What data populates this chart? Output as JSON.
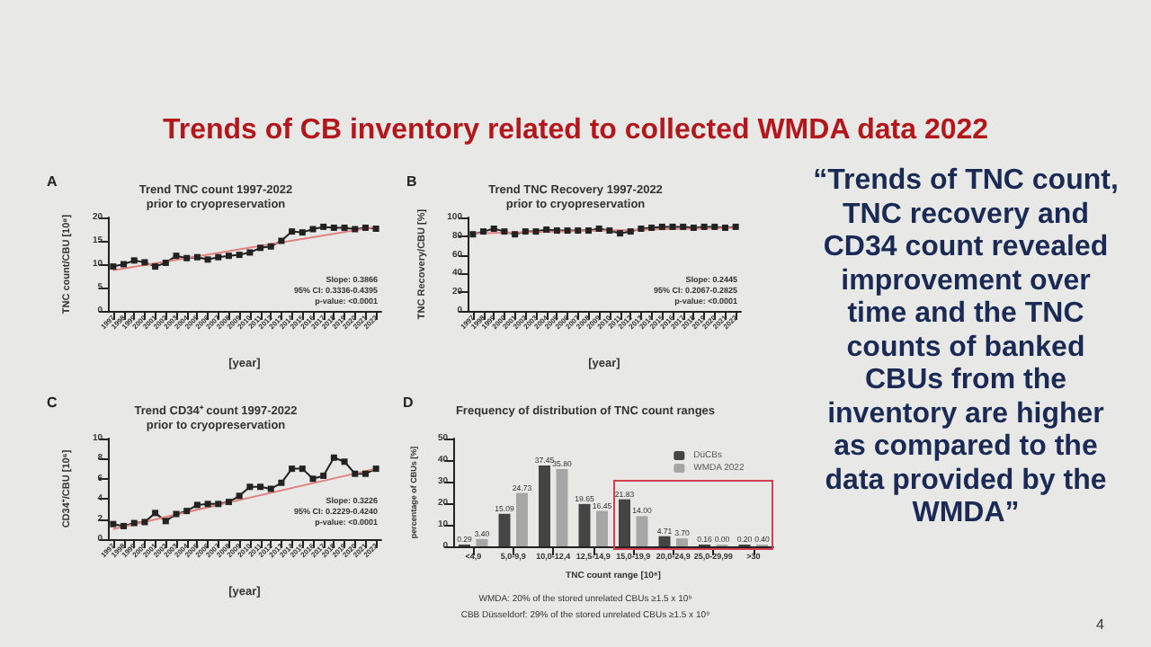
{
  "chart_data": [
    {
      "type": "other",
      "title": "Trends of CB inventory related to collected WMDA data 2022"
    },
    {
      "type": "line",
      "title": "Trend TNC count 1997-2022\nprior to cryopreservation",
      "subtitle": "A",
      "xlabel": "[year]",
      "ylabel": "TNC count/CBU [10⁸]",
      "categories": [
        "1997",
        "1998",
        "1999",
        "2000",
        "2001",
        "2002",
        "2003",
        "2004",
        "2005",
        "2006",
        "2007",
        "2008",
        "2009",
        "2010",
        "2011",
        "2012",
        "2013",
        "2014",
        "2015",
        "2016",
        "2017",
        "2018",
        "2019",
        "2020",
        "2021",
        "2022"
      ],
      "marker": "square",
      "ylim": [
        0,
        20
      ],
      "yticks": [
        0,
        5,
        10,
        15,
        20
      ],
      "series": [
        {
          "color": "#222222",
          "values": [
            9.5,
            10.0,
            10.8,
            10.4,
            9.5,
            10.3,
            11.8,
            11.3,
            11.5,
            11.0,
            11.5,
            11.8,
            12.0,
            12.5,
            13.5,
            13.8,
            15.0,
            17.0,
            16.8,
            17.5,
            18.0,
            17.8,
            17.8,
            17.5,
            17.8,
            17.6
          ]
        },
        {
          "color": "#e08080",
          "values": [
            8.7,
            null,
            null,
            null,
            null,
            null,
            null,
            null,
            null,
            null,
            null,
            null,
            null,
            null,
            null,
            null,
            null,
            null,
            null,
            null,
            null,
            null,
            null,
            null,
            null,
            18.0
          ],
          "marker": "none"
        }
      ],
      "annotations": [
        "Slope: 0.3866",
        "95% CI: 0.3336-0.4395",
        "p-value: <0.0001"
      ]
    },
    {
      "type": "line",
      "title": "Trend TNC Recovery 1997-2022\nprior to cryopreservation",
      "subtitle": "B",
      "xlabel": "[year]",
      "ylabel": "TNC Recovery/CBU [%]",
      "categories": [
        "1997",
        "1998",
        "1999",
        "2000",
        "2001",
        "2002",
        "2003",
        "2004",
        "2005",
        "2006",
        "2007",
        "2008",
        "2009",
        "2010",
        "2011",
        "2012",
        "2013",
        "2014",
        "2015",
        "2016",
        "2017",
        "2018",
        "2019",
        "2020",
        "2021",
        "2022"
      ],
      "marker": "square",
      "ylim": [
        0,
        100
      ],
      "yticks": [
        0,
        20,
        40,
        60,
        80,
        100
      ],
      "series": [
        {
          "color": "#222222",
          "values": [
            82,
            85,
            88,
            85,
            82,
            85,
            85,
            87,
            86,
            86,
            86,
            86,
            88,
            86,
            83,
            85,
            88,
            89,
            90,
            90,
            90,
            89,
            90,
            90,
            89,
            90
          ]
        },
        {
          "color": "#e08080",
          "values": [
            83,
            null,
            null,
            null,
            null,
            null,
            null,
            null,
            null,
            null,
            null,
            null,
            null,
            null,
            null,
            null,
            null,
            null,
            null,
            null,
            null,
            null,
            null,
            null,
            null,
            89
          ],
          "marker": "none"
        }
      ],
      "annotations": [
        "Slope: 0.2445",
        "95% CI: 0.2067-0.2825",
        "p-value: <0.0001"
      ]
    },
    {
      "type": "line",
      "title": "Trend CD34⁺ count 1997-2022\nprior to cryopreservation",
      "subtitle": "C",
      "xlabel": "[year]",
      "ylabel": "CD34⁺/CBU [10⁶]",
      "categories": [
        "1997",
        "1998",
        "1999",
        "2000",
        "2001",
        "2002",
        "2003",
        "2004",
        "2005",
        "2006",
        "2007",
        "2008",
        "2009",
        "2010",
        "2011",
        "2012",
        "2013",
        "2014",
        "2015",
        "2016",
        "2017",
        "2018",
        "2019",
        "2020",
        "2021",
        "2022"
      ],
      "marker": "square",
      "ylim": [
        0,
        10
      ],
      "yticks": [
        0,
        2,
        4,
        6,
        8,
        10
      ],
      "series": [
        {
          "color": "#222222",
          "values": [
            1.5,
            1.3,
            1.6,
            1.7,
            2.6,
            1.8,
            2.5,
            2.8,
            3.4,
            3.5,
            3.5,
            3.7,
            4.3,
            5.2,
            5.2,
            5.0,
            5.6,
            7.0,
            7.0,
            6.0,
            6.3,
            8.1,
            7.7,
            6.5,
            6.5,
            7.0
          ]
        },
        {
          "color": "#e08080",
          "values": [
            1.0,
            null,
            null,
            null,
            null,
            null,
            null,
            null,
            null,
            null,
            null,
            null,
            null,
            null,
            null,
            null,
            null,
            null,
            null,
            null,
            null,
            null,
            null,
            null,
            null,
            7.0
          ],
          "marker": "none"
        }
      ],
      "annotations": [
        "Slope: 0.3226",
        "95% CI: 0.2229-0.4240",
        "p-value: <0.0001"
      ]
    },
    {
      "type": "bar",
      "title": "Frequency of distribution of TNC count ranges",
      "subtitle": "D",
      "xlabel": "TNC count range [10⁸]",
      "ylabel": "percentage of CBUs [%]",
      "categories": [
        "<4,9",
        "5,0-9,9",
        "10,0-12,4",
        "12,5-14,9",
        "15,0-19,9",
        "20,0-24,9",
        "25,0-29,99",
        ">30"
      ],
      "ylim": [
        0,
        50
      ],
      "yticks": [
        0,
        10,
        20,
        30,
        40,
        50
      ],
      "legend": "top right",
      "series": [
        {
          "name": "DüCBs",
          "color": "#444444",
          "values": [
            0.29,
            15.09,
            37.45,
            19.65,
            21.83,
            4.71,
            0.16,
            0.2
          ],
          "value_labels": [
            "0.29",
            "15.09",
            "37.45",
            "19.65",
            "21.83",
            "4.71",
            "0.16",
            "0.20"
          ]
        },
        {
          "name": "WMDA 2022",
          "color": "#a6a6a6",
          "values": [
            3.4,
            24.73,
            35.8,
            16.45,
            14.0,
            3.7,
            0.0,
            0.4
          ],
          "value_labels": [
            "3.40",
            "24.73",
            "35.80",
            "16.45",
            "14.00",
            "3.70",
            "0.00",
            "0.40"
          ]
        }
      ],
      "annotations": [
        "WMDA: 20% of the stored unrelated CBUs ≥1.5 x 10⁹",
        "CBB Düsseldorf: 29% of the stored unrelated CBUs ≥1.5 x 10⁹"
      ]
    },
    {
      "type": "other",
      "annotations": [
        "“Trends of TNC count, TNC recovery and CD34 count revealed improvement over time and the TNC counts of banked CBUs from the inventory are higher as compared to the data provided by the WMDA”",
        "4"
      ]
    }
  ]
}
